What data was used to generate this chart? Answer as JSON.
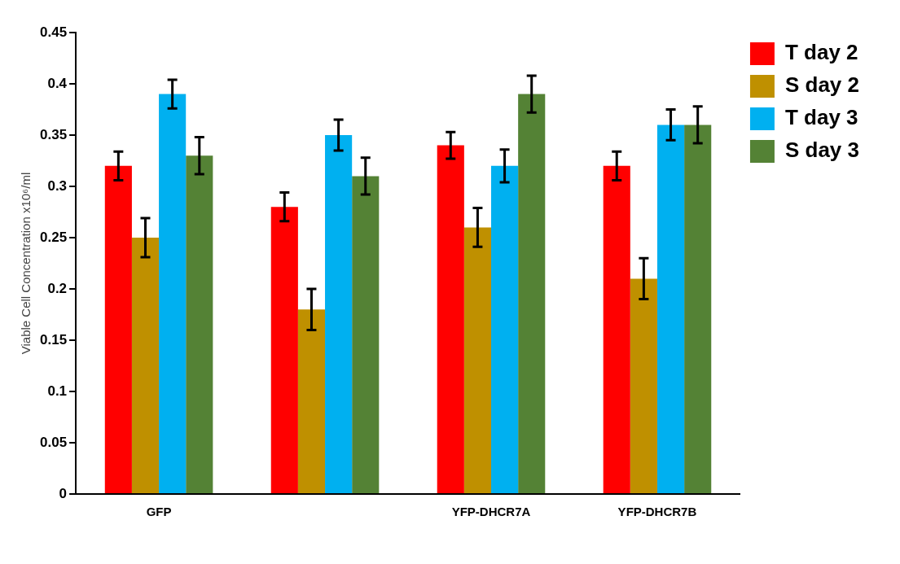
{
  "chart_data": {
    "type": "bar",
    "ylabel": "Viable Cell Concentration x10⁶/ml",
    "categories": [
      "GFP",
      null,
      "YFP-DHCR7A",
      "YFP-DHCR7B"
    ],
    "series": [
      {
        "name": "T day 2",
        "color": "#ff0000",
        "values": [
          0.32,
          0.28,
          0.34,
          0.32
        ],
        "errors": [
          0.014,
          0.014,
          0.013,
          0.014
        ]
      },
      {
        "name": "S day 2",
        "color": "#bf9000",
        "values": [
          0.25,
          0.18,
          0.26,
          0.21
        ],
        "errors": [
          0.019,
          0.02,
          0.019,
          0.02
        ]
      },
      {
        "name": "T day 3",
        "color": "#00b0f0",
        "values": [
          0.39,
          0.35,
          0.32,
          0.36
        ],
        "errors": [
          0.014,
          0.015,
          0.016,
          0.015
        ]
      },
      {
        "name": "S day 3",
        "color": "#548235",
        "values": [
          0.33,
          0.31,
          0.39,
          0.36
        ],
        "errors": [
          0.018,
          0.018,
          0.018,
          0.018
        ]
      }
    ],
    "ylim": [
      0,
      0.45
    ],
    "yticks": [
      0,
      0.05,
      0.1,
      0.15,
      0.2,
      0.25,
      0.3,
      0.35,
      0.4,
      0.45
    ],
    "grid": false,
    "legend": "top right"
  }
}
